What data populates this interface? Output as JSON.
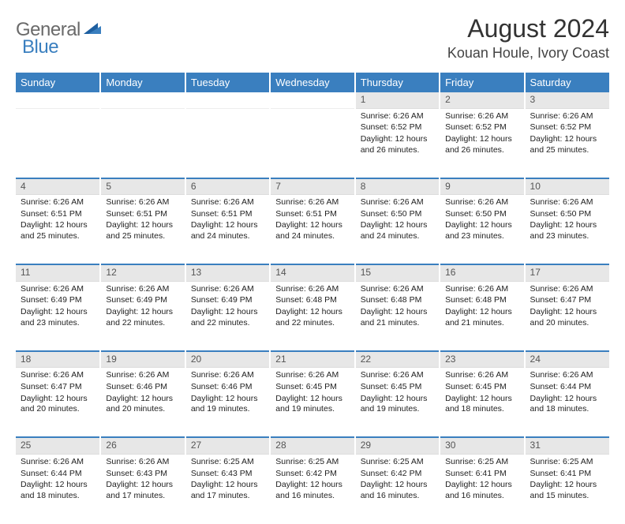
{
  "brand": {
    "word1": "General",
    "word2": "Blue",
    "accent": "#3a7fbf"
  },
  "title": "August 2024",
  "location": "Kouan Houle, Ivory Coast",
  "header_bg": "#3a7fbf",
  "daynum_bg": "#e7e7e7",
  "weekdays": [
    "Sunday",
    "Monday",
    "Tuesday",
    "Wednesday",
    "Thursday",
    "Friday",
    "Saturday"
  ],
  "weeks": [
    [
      null,
      null,
      null,
      null,
      {
        "n": "1",
        "sunrise": "6:26 AM",
        "sunset": "6:52 PM",
        "daylight": "12 hours and 26 minutes."
      },
      {
        "n": "2",
        "sunrise": "6:26 AM",
        "sunset": "6:52 PM",
        "daylight": "12 hours and 26 minutes."
      },
      {
        "n": "3",
        "sunrise": "6:26 AM",
        "sunset": "6:52 PM",
        "daylight": "12 hours and 25 minutes."
      }
    ],
    [
      {
        "n": "4",
        "sunrise": "6:26 AM",
        "sunset": "6:51 PM",
        "daylight": "12 hours and 25 minutes."
      },
      {
        "n": "5",
        "sunrise": "6:26 AM",
        "sunset": "6:51 PM",
        "daylight": "12 hours and 25 minutes."
      },
      {
        "n": "6",
        "sunrise": "6:26 AM",
        "sunset": "6:51 PM",
        "daylight": "12 hours and 24 minutes."
      },
      {
        "n": "7",
        "sunrise": "6:26 AM",
        "sunset": "6:51 PM",
        "daylight": "12 hours and 24 minutes."
      },
      {
        "n": "8",
        "sunrise": "6:26 AM",
        "sunset": "6:50 PM",
        "daylight": "12 hours and 24 minutes."
      },
      {
        "n": "9",
        "sunrise": "6:26 AM",
        "sunset": "6:50 PM",
        "daylight": "12 hours and 23 minutes."
      },
      {
        "n": "10",
        "sunrise": "6:26 AM",
        "sunset": "6:50 PM",
        "daylight": "12 hours and 23 minutes."
      }
    ],
    [
      {
        "n": "11",
        "sunrise": "6:26 AM",
        "sunset": "6:49 PM",
        "daylight": "12 hours and 23 minutes."
      },
      {
        "n": "12",
        "sunrise": "6:26 AM",
        "sunset": "6:49 PM",
        "daylight": "12 hours and 22 minutes."
      },
      {
        "n": "13",
        "sunrise": "6:26 AM",
        "sunset": "6:49 PM",
        "daylight": "12 hours and 22 minutes."
      },
      {
        "n": "14",
        "sunrise": "6:26 AM",
        "sunset": "6:48 PM",
        "daylight": "12 hours and 22 minutes."
      },
      {
        "n": "15",
        "sunrise": "6:26 AM",
        "sunset": "6:48 PM",
        "daylight": "12 hours and 21 minutes."
      },
      {
        "n": "16",
        "sunrise": "6:26 AM",
        "sunset": "6:48 PM",
        "daylight": "12 hours and 21 minutes."
      },
      {
        "n": "17",
        "sunrise": "6:26 AM",
        "sunset": "6:47 PM",
        "daylight": "12 hours and 20 minutes."
      }
    ],
    [
      {
        "n": "18",
        "sunrise": "6:26 AM",
        "sunset": "6:47 PM",
        "daylight": "12 hours and 20 minutes."
      },
      {
        "n": "19",
        "sunrise": "6:26 AM",
        "sunset": "6:46 PM",
        "daylight": "12 hours and 20 minutes."
      },
      {
        "n": "20",
        "sunrise": "6:26 AM",
        "sunset": "6:46 PM",
        "daylight": "12 hours and 19 minutes."
      },
      {
        "n": "21",
        "sunrise": "6:26 AM",
        "sunset": "6:45 PM",
        "daylight": "12 hours and 19 minutes."
      },
      {
        "n": "22",
        "sunrise": "6:26 AM",
        "sunset": "6:45 PM",
        "daylight": "12 hours and 19 minutes."
      },
      {
        "n": "23",
        "sunrise": "6:26 AM",
        "sunset": "6:45 PM",
        "daylight": "12 hours and 18 minutes."
      },
      {
        "n": "24",
        "sunrise": "6:26 AM",
        "sunset": "6:44 PM",
        "daylight": "12 hours and 18 minutes."
      }
    ],
    [
      {
        "n": "25",
        "sunrise": "6:26 AM",
        "sunset": "6:44 PM",
        "daylight": "12 hours and 18 minutes."
      },
      {
        "n": "26",
        "sunrise": "6:26 AM",
        "sunset": "6:43 PM",
        "daylight": "12 hours and 17 minutes."
      },
      {
        "n": "27",
        "sunrise": "6:25 AM",
        "sunset": "6:43 PM",
        "daylight": "12 hours and 17 minutes."
      },
      {
        "n": "28",
        "sunrise": "6:25 AM",
        "sunset": "6:42 PM",
        "daylight": "12 hours and 16 minutes."
      },
      {
        "n": "29",
        "sunrise": "6:25 AM",
        "sunset": "6:42 PM",
        "daylight": "12 hours and 16 minutes."
      },
      {
        "n": "30",
        "sunrise": "6:25 AM",
        "sunset": "6:41 PM",
        "daylight": "12 hours and 16 minutes."
      },
      {
        "n": "31",
        "sunrise": "6:25 AM",
        "sunset": "6:41 PM",
        "daylight": "12 hours and 15 minutes."
      }
    ]
  ],
  "labels": {
    "sunrise": "Sunrise: ",
    "sunset": "Sunset: ",
    "daylight": "Daylight: "
  }
}
